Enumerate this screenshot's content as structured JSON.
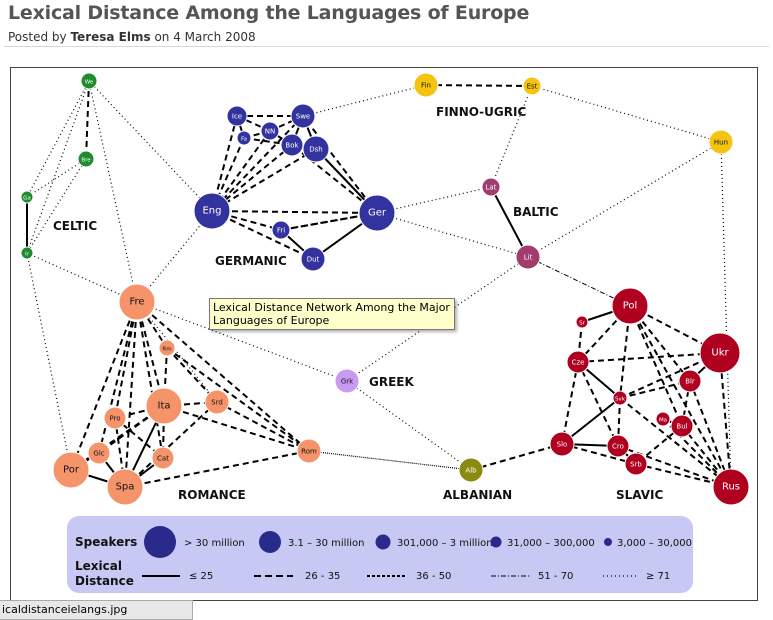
{
  "page": {
    "title": "Lexical Distance Among the Languages of Europe",
    "posted_prefix": "Posted by",
    "author": "Teresa Elms",
    "date_text": "on 4 March 2008"
  },
  "tooltip": "Lexical Distance Network Among the Major Languages of Europe",
  "statusbar": "icaldistanceielangs.jpg",
  "groups": {
    "finno": "FINNO-UGRIC",
    "celtic": "CELTIC",
    "germanic": "GERMANIC",
    "baltic": "BALTIC",
    "greek": "GREEK",
    "romance": "ROMANCE",
    "albanian": "ALBANIAN",
    "slavic": "SLAVIC"
  },
  "colors": {
    "celtic": "#1e8b2e",
    "germanic": "#3333a0",
    "finno": "#f5c410",
    "baltic": "#a03d6e",
    "romance": "#f5946a",
    "greek": "#c89af2",
    "albanian": "#8a8a10",
    "slavic": "#b00020",
    "legend_bg": "#c8c8f5",
    "legend_dot": "#2a2a8c"
  },
  "nodes": [
    {
      "id": "we",
      "label": "We",
      "group": "celtic"
    },
    {
      "id": "bre",
      "label": "Bre",
      "group": "celtic"
    },
    {
      "id": "ga",
      "label": "Ga",
      "group": "celtic"
    },
    {
      "id": "ir",
      "label": "Ir",
      "group": "celtic"
    },
    {
      "id": "ice",
      "label": "Ice",
      "group": "germanic"
    },
    {
      "id": "fa",
      "label": "Fa",
      "group": "germanic"
    },
    {
      "id": "nn",
      "label": "NN",
      "group": "germanic"
    },
    {
      "id": "swe",
      "label": "Swe",
      "group": "germanic"
    },
    {
      "id": "bok",
      "label": "Bok",
      "group": "germanic"
    },
    {
      "id": "dsh",
      "label": "Dsh",
      "group": "germanic"
    },
    {
      "id": "eng",
      "label": "Eng",
      "group": "germanic"
    },
    {
      "id": "ger",
      "label": "Ger",
      "group": "germanic"
    },
    {
      "id": "fri",
      "label": "Fri",
      "group": "germanic"
    },
    {
      "id": "dut",
      "label": "Dut",
      "group": "germanic"
    },
    {
      "id": "fin",
      "label": "Fin",
      "group": "finno"
    },
    {
      "id": "est",
      "label": "Est",
      "group": "finno"
    },
    {
      "id": "hun",
      "label": "Hun",
      "group": "finno"
    },
    {
      "id": "lat",
      "label": "Lat",
      "group": "baltic"
    },
    {
      "id": "lit",
      "label": "Lit",
      "group": "baltic"
    },
    {
      "id": "fre",
      "label": "Fre",
      "group": "romance"
    },
    {
      "id": "rm",
      "label": "Rm",
      "group": "romance"
    },
    {
      "id": "ita",
      "label": "Ita",
      "group": "romance"
    },
    {
      "id": "srd",
      "label": "Srd",
      "group": "romance"
    },
    {
      "id": "pro",
      "label": "Pro",
      "group": "romance"
    },
    {
      "id": "glc",
      "label": "Glc",
      "group": "romance"
    },
    {
      "id": "cat",
      "label": "Cat",
      "group": "romance"
    },
    {
      "id": "por",
      "label": "Por",
      "group": "romance"
    },
    {
      "id": "spa",
      "label": "Spa",
      "group": "romance"
    },
    {
      "id": "rom",
      "label": "Rom",
      "group": "romance"
    },
    {
      "id": "grk",
      "label": "Grk",
      "group": "greek"
    },
    {
      "id": "alb",
      "label": "Alb",
      "group": "albanian"
    },
    {
      "id": "pol",
      "label": "Pol",
      "group": "slavic"
    },
    {
      "id": "sr",
      "label": "Sr",
      "group": "slavic"
    },
    {
      "id": "cze",
      "label": "Cze",
      "group": "slavic"
    },
    {
      "id": "ukr",
      "label": "Ukr",
      "group": "slavic"
    },
    {
      "id": "blr",
      "label": "Blr",
      "group": "slavic"
    },
    {
      "id": "svk",
      "label": "Svk",
      "group": "slavic"
    },
    {
      "id": "ma",
      "label": "Ma",
      "group": "slavic"
    },
    {
      "id": "bul",
      "label": "Bul",
      "group": "slavic"
    },
    {
      "id": "slo",
      "label": "Slo",
      "group": "slavic"
    },
    {
      "id": "cro",
      "label": "Cro",
      "group": "slavic"
    },
    {
      "id": "srb",
      "label": "Srb",
      "group": "slavic"
    },
    {
      "id": "rus",
      "label": "Rus",
      "group": "slavic"
    }
  ],
  "edges": [
    [
      "we",
      "bre",
      "dash"
    ],
    [
      "we",
      "ga",
      "dot"
    ],
    [
      "we",
      "ir",
      "dot"
    ],
    [
      "bre",
      "ga",
      "dot"
    ],
    [
      "bre",
      "ir",
      "dot"
    ],
    [
      "ga",
      "ir",
      "solid"
    ],
    [
      "we",
      "eng",
      "dot"
    ],
    [
      "ir",
      "fre",
      "dot"
    ],
    [
      "ir",
      "por",
      "dot"
    ],
    [
      "we",
      "fre",
      "dot"
    ],
    [
      "ice",
      "fa",
      "dash"
    ],
    [
      "ice",
      "nn",
      "dash"
    ],
    [
      "fa",
      "nn",
      "dash"
    ],
    [
      "nn",
      "swe",
      "dash"
    ],
    [
      "ice",
      "swe",
      "dash"
    ],
    [
      "swe",
      "bok",
      "solid"
    ],
    [
      "swe",
      "dsh",
      "solid"
    ],
    [
      "bok",
      "dsh",
      "solid"
    ],
    [
      "nn",
      "bok",
      "solid"
    ],
    [
      "fa",
      "bok",
      "dash"
    ],
    [
      "ice",
      "eng",
      "dash"
    ],
    [
      "fa",
      "eng",
      "dash"
    ],
    [
      "nn",
      "eng",
      "dash"
    ],
    [
      "swe",
      "eng",
      "dash"
    ],
    [
      "bok",
      "eng",
      "dash"
    ],
    [
      "dsh",
      "eng",
      "dash"
    ],
    [
      "eng",
      "ger",
      "dash"
    ],
    [
      "eng",
      "fri",
      "dash"
    ],
    [
      "eng",
      "dut",
      "dash"
    ],
    [
      "fri",
      "ger",
      "dash"
    ],
    [
      "dut",
      "ger",
      "solid"
    ],
    [
      "fri",
      "dut",
      "solid"
    ],
    [
      "ger",
      "dsh",
      "solid"
    ],
    [
      "ger",
      "swe",
      "dash"
    ],
    [
      "ger",
      "bok",
      "dash"
    ],
    [
      "ger",
      "fri",
      "dash"
    ],
    [
      "eng",
      "fre",
      "dot"
    ],
    [
      "fin",
      "est",
      "dash"
    ],
    [
      "fin",
      "swe",
      "dot"
    ],
    [
      "est",
      "hun",
      "dot"
    ],
    [
      "est",
      "lat",
      "dot"
    ],
    [
      "lat",
      "lit",
      "solid"
    ],
    [
      "ger",
      "lat",
      "dot"
    ],
    [
      "ger",
      "lit",
      "dot"
    ],
    [
      "hun",
      "lit",
      "dot"
    ],
    [
      "lit",
      "pol",
      "dashdot"
    ],
    [
      "lit",
      "grk",
      "dot"
    ],
    [
      "fre",
      "rm",
      "dash"
    ],
    [
      "fre",
      "ita",
      "dash"
    ],
    [
      "fre",
      "srd",
      "dot"
    ],
    [
      "fre",
      "pro",
      "dash"
    ],
    [
      "fre",
      "cat",
      "dash"
    ],
    [
      "fre",
      "por",
      "dash"
    ],
    [
      "fre",
      "spa",
      "dash"
    ],
    [
      "fre",
      "glc",
      "dash"
    ],
    [
      "fre",
      "rom",
      "dash"
    ],
    [
      "fre",
      "grk",
      "dot"
    ],
    [
      "rm",
      "ita",
      "dash"
    ],
    [
      "ita",
      "srd",
      "dash"
    ],
    [
      "ita",
      "pro",
      "dash"
    ],
    [
      "ita",
      "cat",
      "dash"
    ],
    [
      "ita",
      "spa",
      "solid"
    ],
    [
      "ita",
      "rom",
      "dash"
    ],
    [
      "ita",
      "glc",
      "dash"
    ],
    [
      "ita",
      "por",
      "dash"
    ],
    [
      "srd",
      "spa",
      "dash"
    ],
    [
      "srd",
      "rom",
      "dash"
    ],
    [
      "rm",
      "rom",
      "dash"
    ],
    [
      "rm",
      "srd",
      "dash"
    ],
    [
      "pro",
      "spa",
      "dash"
    ],
    [
      "pro",
      "cat",
      "dash"
    ],
    [
      "cat",
      "spa",
      "solid"
    ],
    [
      "glc",
      "spa",
      "solid"
    ],
    [
      "por",
      "spa",
      "solid"
    ],
    [
      "por",
      "glc",
      "solid"
    ],
    [
      "spa",
      "rom",
      "dash"
    ],
    [
      "rom",
      "alb",
      "dot"
    ],
    [
      "grk",
      "alb",
      "dot"
    ],
    [
      "alb",
      "slo",
      "dash"
    ],
    [
      "alb",
      "rom",
      "dot"
    ],
    [
      "pol",
      "sr",
      "solid"
    ],
    [
      "pol",
      "cze",
      "dash"
    ],
    [
      "pol",
      "ukr",
      "dash"
    ],
    [
      "pol",
      "blr",
      "dash"
    ],
    [
      "pol",
      "svk",
      "dash"
    ],
    [
      "pol",
      "rus",
      "dash"
    ],
    [
      "pol",
      "bul",
      "dash"
    ],
    [
      "sr",
      "cze",
      "dash"
    ],
    [
      "cze",
      "svk",
      "solid"
    ],
    [
      "cze",
      "slo",
      "dash"
    ],
    [
      "cze",
      "cro",
      "dash"
    ],
    [
      "cze",
      "ukr",
      "dash"
    ],
    [
      "svk",
      "slo",
      "solid"
    ],
    [
      "svk",
      "cro",
      "dash"
    ],
    [
      "svk",
      "ukr",
      "dash"
    ],
    [
      "svk",
      "blr",
      "dash"
    ],
    [
      "ukr",
      "blr",
      "solid"
    ],
    [
      "ukr",
      "rus",
      "dash"
    ],
    [
      "blr",
      "rus",
      "dash"
    ],
    [
      "blr",
      "bul",
      "dash"
    ],
    [
      "ma",
      "bul",
      "solid"
    ],
    [
      "bul",
      "srb",
      "dash"
    ],
    [
      "bul",
      "rus",
      "dash"
    ],
    [
      "ma",
      "rus",
      "dash"
    ],
    [
      "slo",
      "cro",
      "solid"
    ],
    [
      "cro",
      "srb",
      "solid"
    ],
    [
      "srb",
      "rus",
      "dash"
    ],
    [
      "slo",
      "srb",
      "dash"
    ],
    [
      "cro",
      "rus",
      "dash"
    ],
    [
      "hun",
      "rus",
      "dot"
    ],
    [
      "svk",
      "rus",
      "dash"
    ]
  ],
  "legend": {
    "speakers_label": "Speakers",
    "lexical_label_1": "Lexical",
    "lexical_label_2": "Distance",
    "speakers": [
      {
        "range": "> 30 million"
      },
      {
        "range": "3.1 – 30 million"
      },
      {
        "range": "301,000 – 3 million"
      },
      {
        "range": "31,000 – 300,000"
      },
      {
        "range": "3,000 – 30,000"
      }
    ],
    "distances": [
      {
        "style": "solid",
        "range": "≤ 25"
      },
      {
        "style": "dash",
        "range": "26 - 35"
      },
      {
        "style": "dashshort",
        "range": "36 - 50"
      },
      {
        "style": "dashdot",
        "range": "51 - 70"
      },
      {
        "style": "dot",
        "range": "≥ 71"
      }
    ]
  }
}
